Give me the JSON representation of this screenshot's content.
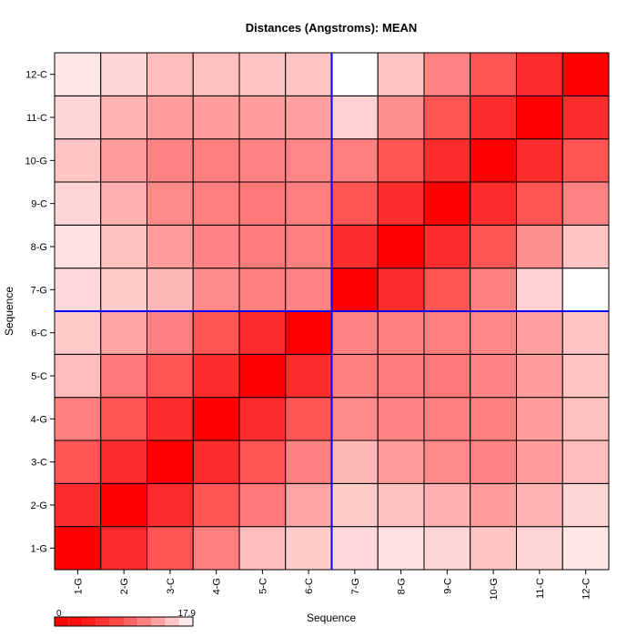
{
  "chart_data": {
    "type": "heatmap",
    "title": "Distances (Angstroms):  MEAN",
    "xlabel": "Sequence",
    "ylabel": "Sequence",
    "x_categories": [
      "1-G",
      "2-G",
      "3-C",
      "4-G",
      "5-C",
      "6-C",
      "7-G",
      "8-G",
      "9-C",
      "10-G",
      "11-C",
      "12-C"
    ],
    "y_categories": [
      "1-G",
      "2-G",
      "3-C",
      "4-G",
      "5-C",
      "6-C",
      "7-G",
      "8-G",
      "9-C",
      "10-G",
      "11-C",
      "12-C"
    ],
    "value_range": [
      0,
      17.9
    ],
    "legend": {
      "min_label": "0",
      "max_label": "17.9",
      "steps": 10
    },
    "colors": {
      "low": "#ff0000",
      "high": "#ffffff",
      "divider": "#0000ff",
      "grid": "#000000"
    },
    "divider_after_index": 6,
    "values": [
      [
        0.0,
        5.8,
        9.0,
        11.6,
        14.8,
        15.5,
        16.2,
        16.5,
        16.0,
        15.2,
        16.0,
        16.8
      ],
      [
        5.8,
        0.0,
        6.0,
        9.0,
        11.2,
        13.7,
        15.5,
        15.0,
        14.2,
        13.2,
        14.4,
        16.0
      ],
      [
        9.0,
        6.0,
        0.0,
        6.0,
        9.0,
        11.7,
        14.5,
        13.2,
        12.2,
        11.8,
        13.2,
        14.8
      ],
      [
        11.6,
        9.0,
        6.0,
        0.0,
        6.0,
        9.0,
        12.2,
        11.8,
        11.6,
        11.6,
        13.2,
        15.0
      ],
      [
        14.8,
        11.2,
        9.0,
        6.0,
        0.0,
        6.0,
        11.6,
        11.4,
        11.2,
        11.8,
        13.2,
        15.2
      ],
      [
        15.5,
        13.7,
        11.7,
        9.0,
        6.0,
        0.0,
        11.8,
        11.6,
        11.6,
        12.0,
        13.4,
        15.2
      ],
      [
        16.2,
        15.5,
        14.5,
        12.2,
        11.6,
        11.8,
        0.0,
        6.0,
        9.0,
        11.6,
        15.8,
        17.9
      ],
      [
        16.5,
        15.0,
        13.2,
        11.8,
        11.4,
        11.6,
        6.0,
        0.0,
        6.0,
        9.0,
        12.4,
        15.2
      ],
      [
        16.0,
        14.2,
        12.2,
        11.6,
        11.2,
        11.6,
        9.0,
        6.0,
        0.0,
        6.0,
        9.0,
        11.8
      ],
      [
        15.2,
        13.2,
        11.8,
        11.6,
        11.8,
        12.0,
        11.6,
        9.0,
        6.0,
        0.0,
        6.0,
        9.0
      ],
      [
        16.0,
        14.4,
        13.2,
        13.2,
        13.2,
        13.4,
        15.8,
        12.4,
        9.0,
        6.0,
        0.0,
        6.0
      ],
      [
        16.8,
        16.0,
        14.8,
        15.0,
        15.2,
        15.2,
        17.9,
        15.2,
        11.8,
        9.0,
        6.0,
        0.0
      ]
    ]
  }
}
